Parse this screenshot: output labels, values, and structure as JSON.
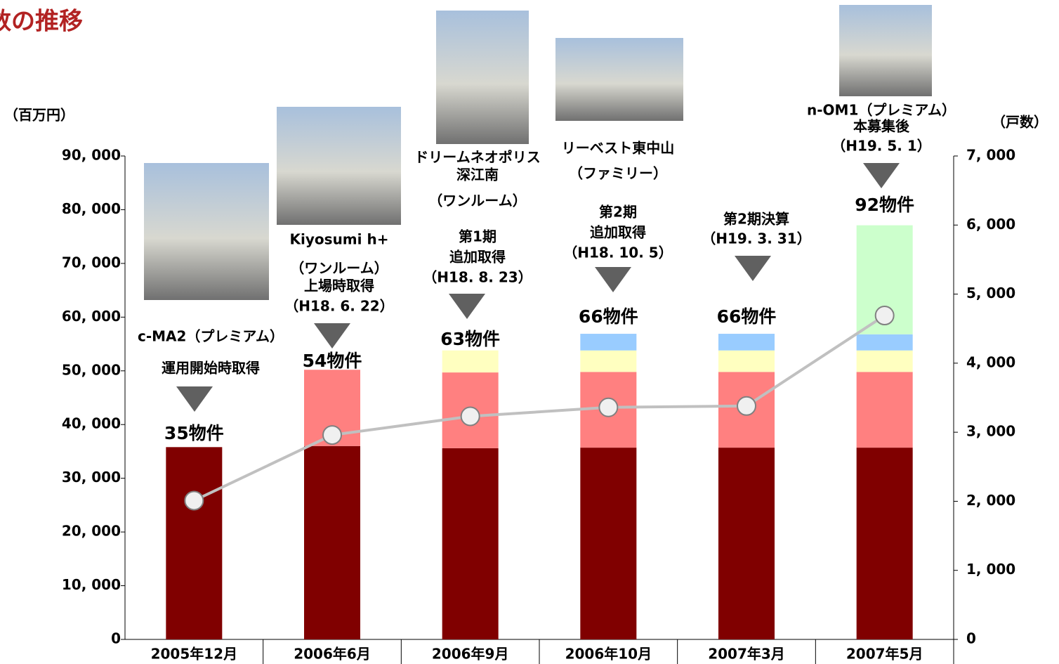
{
  "chart_data": {
    "type": "bar",
    "title": "数の推移",
    "y_label": "（百万円）",
    "y2_label": "（戸数）",
    "categories": [
      "2005年12月",
      "2006年6月",
      "2006年9月",
      "2006年10月",
      "2007年3月",
      "2007年5月"
    ],
    "series": [
      {
        "color": "#800000",
        "values": [
          35800,
          36000,
          35600,
          35700,
          35700,
          35700
        ]
      },
      {
        "color": "#ff8080",
        "values": [
          null,
          14200,
          14100,
          14100,
          14100,
          14100
        ]
      },
      {
        "color": "#ffffc0",
        "values": [
          null,
          null,
          4100,
          4000,
          4000,
          4000
        ]
      },
      {
        "color": "#99ccff",
        "values": [
          null,
          null,
          null,
          3100,
          3100,
          3000
        ]
      },
      {
        "color": "#ccffcc",
        "values": [
          null,
          null,
          null,
          null,
          null,
          20300
        ]
      },
      {
        "type": "line",
        "axis": "y2",
        "color": "#c0c0c0",
        "values": [
          2010,
          2960,
          3230,
          3360,
          3380,
          4690
        ]
      }
    ],
    "count_labels": [
      "35物件",
      "54物件",
      "63物件",
      "66物件",
      "66物件",
      "92物件"
    ],
    "annotations": [
      [
        "c-MA2（プレミアム）",
        "運用開始時取得"
      ],
      [
        "Kiyosumi h+",
        "（ワンルーム）",
        "上場時取得",
        "（H18. 6. 22）"
      ],
      [
        "ドリームネオポリス",
        "深江南",
        "（ワンルーム）",
        "第1期",
        "追加取得",
        "（H18. 8. 23）"
      ],
      [
        "リーベスト東中山",
        "（ファミリー）",
        "第2期",
        "追加取得",
        "（H18. 10. 5）"
      ],
      [
        "第2期決算",
        "（H19. 3. 31）"
      ],
      [
        "n-OM1（プレミアム）",
        "本募集後",
        "（H19. 5. 1）"
      ]
    ],
    "ylim": [
      0,
      90000
    ],
    "yticks": [
      0,
      {
        "value": 10000,
        "label": "10, 000"
      },
      {
        "value": 20000,
        "label": "20, 000"
      },
      {
        "value": 30000,
        "label": "30, 000"
      },
      {
        "value": 40000,
        "label": "40, 000"
      },
      {
        "value": 50000,
        "label": "50, 000"
      },
      {
        "value": 60000,
        "label": "60, 000"
      },
      {
        "value": 70000,
        "label": "70, 000"
      },
      {
        "value": 80000,
        "label": "80, 000"
      },
      {
        "value": 90000,
        "label": "90, 000"
      }
    ],
    "y2lim": [
      0,
      7000
    ],
    "y2ticks": [
      0,
      {
        "value": 1000,
        "label": "1, 000"
      },
      {
        "value": 2000,
        "label": "2, 000"
      },
      {
        "value": 3000,
        "label": "3, 000"
      },
      {
        "value": 4000,
        "label": "4, 000"
      },
      {
        "value": 5000,
        "label": "5, 000"
      },
      {
        "value": 6000,
        "label": "6, 000"
      },
      {
        "value": 7000,
        "label": "7, 000"
      }
    ]
  }
}
